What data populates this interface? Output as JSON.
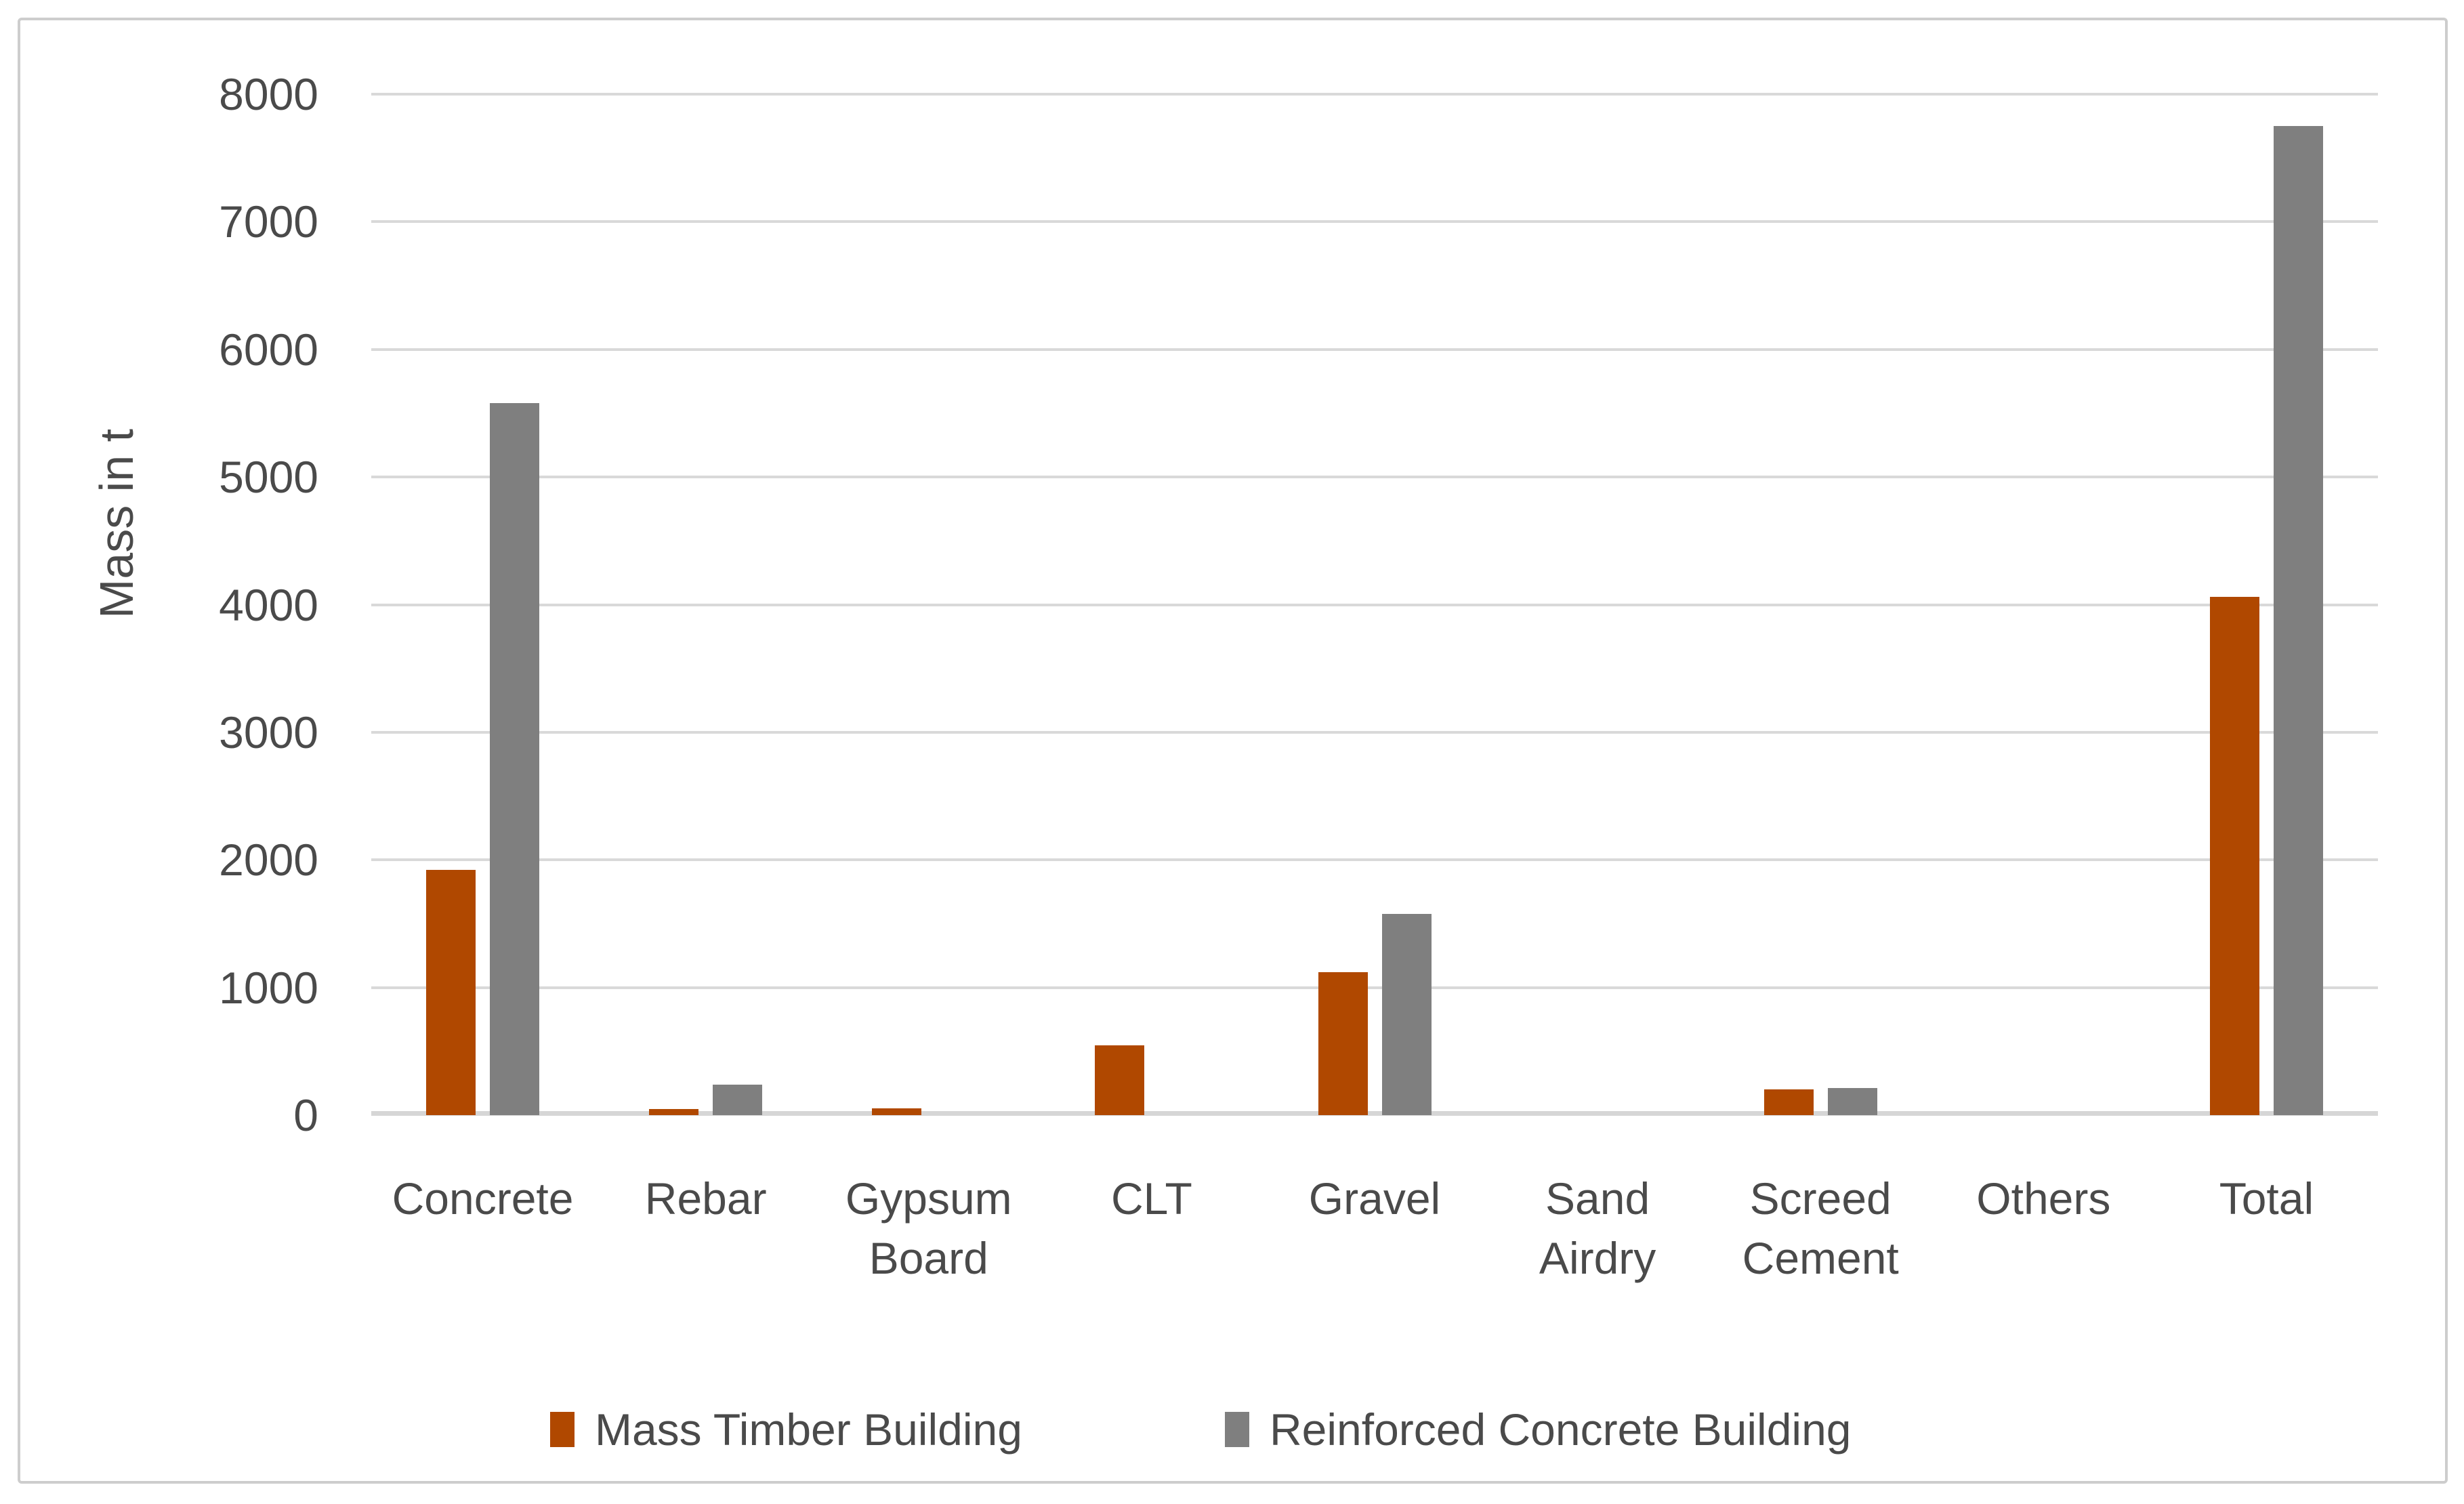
{
  "chart_data": {
    "type": "bar",
    "title": "",
    "xlabel": "",
    "ylabel": "Mass in t",
    "ylim": [
      0,
      8000
    ],
    "yticks": [
      0,
      1000,
      2000,
      3000,
      4000,
      5000,
      6000,
      7000,
      8000
    ],
    "grid": true,
    "legend_position": "bottom",
    "categories": [
      "Concrete",
      "Rebar",
      "Gypsum\nBoard",
      "CLT",
      "Gravel",
      "Sand\nAirdry",
      "Screed\nCement",
      "Others",
      "Total"
    ],
    "series": [
      {
        "name": "Mass Timber Building",
        "color": "#b04800",
        "values": [
          1920,
          50,
          55,
          545,
          1120,
          0,
          200,
          0,
          4060
        ]
      },
      {
        "name": "Reinforced Concrete Building",
        "color": "#7f7f7f",
        "values": [
          5580,
          240,
          0,
          0,
          1575,
          0,
          210,
          0,
          7750
        ]
      }
    ],
    "colors": {
      "gridline": "#d9d9d9",
      "axis_text": "#4a4a4a",
      "axis_line": "#d6d6d6"
    }
  }
}
